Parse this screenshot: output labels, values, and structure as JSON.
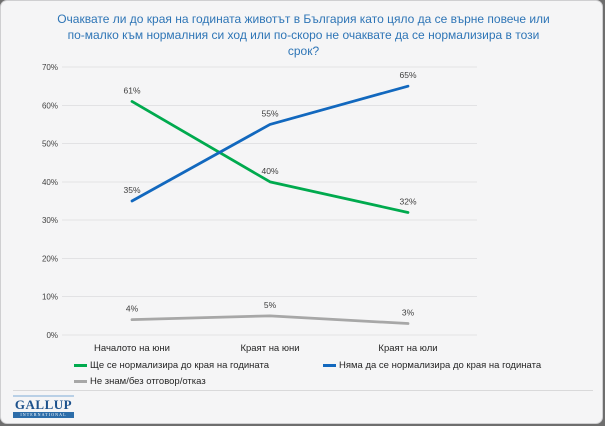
{
  "title": "Очаквате ли до края на годината животът в България като цяло да се върне повече или по-малко към нормалния си ход или по-скоро не очаквате да се нормализира в този срок?",
  "chart_data": {
    "type": "line",
    "categories": [
      "Началото на юни",
      "Краят на юни",
      "Краят на юли"
    ],
    "series": [
      {
        "name": "Ще се нормализира до края на годината",
        "values": [
          61,
          40,
          32
        ],
        "labels": [
          "61%",
          "40%",
          "32%"
        ],
        "color": "#00AA4E"
      },
      {
        "name": "Няма да се нормализира до края на годината",
        "values": [
          35,
          55,
          65
        ],
        "labels": [
          "35%",
          "55%",
          "65%"
        ],
        "color": "#1268BE"
      },
      {
        "name": "Не знам/без отговор/отказ",
        "values": [
          4,
          5,
          3
        ],
        "labels": [
          "4%",
          "5%",
          "3%"
        ],
        "color": "#A7A7A7"
      }
    ],
    "ylim": [
      0,
      70
    ],
    "y_ticks": [
      "0%",
      "10%",
      "20%",
      "30%",
      "40%",
      "50%",
      "60%",
      "70%"
    ],
    "grid": true,
    "legend_position": "bottom"
  },
  "colors": {
    "title": "#2E75B6",
    "grid": "#e2e2e4",
    "axis_text": "#404040",
    "data_label": "#3d3d3d",
    "background": "#f5f5f6"
  },
  "logo": {
    "name": "GALLUP",
    "subtitle": "INTERNATIONAL"
  }
}
